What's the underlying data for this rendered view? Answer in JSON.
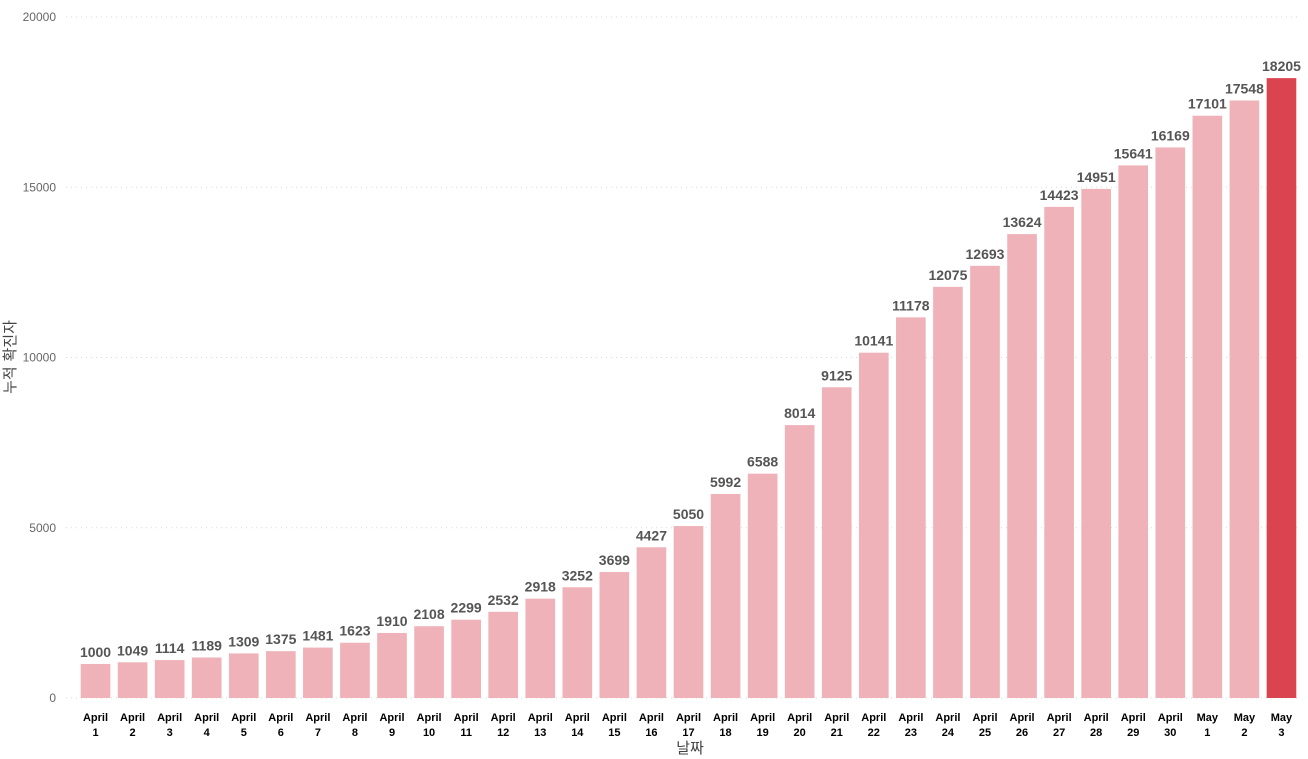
{
  "chart_data": {
    "type": "bar",
    "xlabel": "날짜",
    "ylabel": "누적 확진자",
    "ylim": [
      0,
      20000
    ],
    "yticks": [
      0,
      5000,
      10000,
      15000,
      20000
    ],
    "grid": true,
    "categories": [
      [
        "April",
        "1"
      ],
      [
        "April",
        "2"
      ],
      [
        "April",
        "3"
      ],
      [
        "April",
        "4"
      ],
      [
        "April",
        "5"
      ],
      [
        "April",
        "6"
      ],
      [
        "April",
        "7"
      ],
      [
        "April",
        "8"
      ],
      [
        "April",
        "9"
      ],
      [
        "April",
        "10"
      ],
      [
        "April",
        "11"
      ],
      [
        "April",
        "12"
      ],
      [
        "April",
        "13"
      ],
      [
        "April",
        "14"
      ],
      [
        "April",
        "15"
      ],
      [
        "April",
        "16"
      ],
      [
        "April",
        "17"
      ],
      [
        "April",
        "18"
      ],
      [
        "April",
        "19"
      ],
      [
        "April",
        "20"
      ],
      [
        "April",
        "21"
      ],
      [
        "April",
        "22"
      ],
      [
        "April",
        "23"
      ],
      [
        "April",
        "24"
      ],
      [
        "April",
        "25"
      ],
      [
        "April",
        "26"
      ],
      [
        "April",
        "27"
      ],
      [
        "April",
        "28"
      ],
      [
        "April",
        "29"
      ],
      [
        "April",
        "30"
      ],
      [
        "May",
        "1"
      ],
      [
        "May",
        "2"
      ],
      [
        "May",
        "3"
      ]
    ],
    "values": [
      1000,
      1049,
      1114,
      1189,
      1309,
      1375,
      1481,
      1623,
      1910,
      2108,
      2299,
      2532,
      2918,
      3252,
      3699,
      4427,
      5050,
      5992,
      6588,
      8014,
      9125,
      10141,
      11178,
      12075,
      12693,
      13624,
      14423,
      14951,
      15641,
      16169,
      17101,
      17548,
      18205
    ],
    "highlight_index": 32,
    "colors": {
      "bar": "#eeb2b8",
      "highlight": "#d9444f"
    }
  }
}
